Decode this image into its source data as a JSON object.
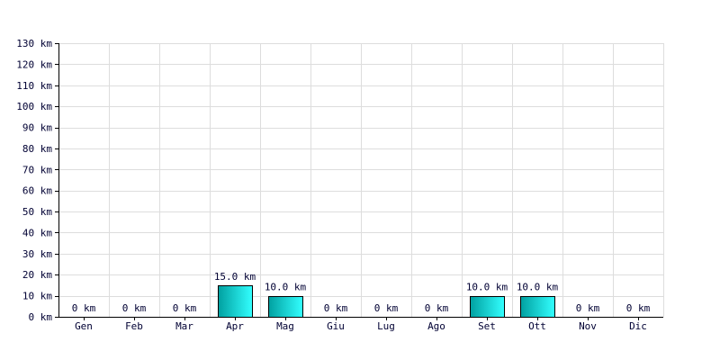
{
  "chart_data": {
    "type": "bar",
    "categories": [
      "Gen",
      "Feb",
      "Mar",
      "Apr",
      "Mag",
      "Giu",
      "Lug",
      "Ago",
      "Set",
      "Ott",
      "Nov",
      "Dic"
    ],
    "values": [
      0,
      0,
      0,
      15.0,
      10.0,
      0,
      0,
      0,
      10.0,
      10.0,
      0,
      0
    ],
    "value_labels": [
      "0 km",
      "0 km",
      "0 km",
      "15.0 km",
      "10.0 km",
      "0 km",
      "0 km",
      "0 km",
      "10.0 km",
      "10.0 km",
      "0 km",
      "0 km"
    ],
    "y_ticks": [
      0,
      10,
      20,
      30,
      40,
      50,
      60,
      70,
      80,
      90,
      100,
      110,
      120,
      130
    ],
    "y_tick_labels": [
      "0 km",
      "10 km",
      "20 km",
      "30 km",
      "40 km",
      "50 km",
      "60 km",
      "70 km",
      "80 km",
      "90 km",
      "100 km",
      "110 km",
      "120 km",
      "130 km"
    ],
    "ylim": [
      0,
      130
    ],
    "grid": true,
    "title": "",
    "xlabel": "",
    "ylabel": "",
    "colors": {
      "bar_dark": "#00a0a0",
      "bar_light": "#33ffff",
      "grid": "#dddddd",
      "text": "#000033",
      "axis": "#000000"
    }
  }
}
